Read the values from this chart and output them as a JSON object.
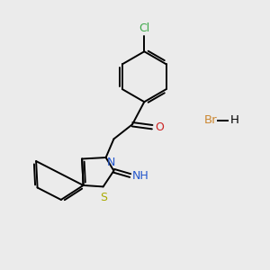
{
  "bg_color": "#ebebeb",
  "bond_color": "#000000",
  "cl_color": "#3da84a",
  "n_color": "#2255cc",
  "o_color": "#cc2222",
  "s_color": "#aaaa00",
  "br_color": "#cc8833",
  "line_width": 1.4,
  "figsize": [
    3.0,
    3.0
  ],
  "dpi": 100,
  "xlim": [
    0,
    10
  ],
  "ylim": [
    0,
    10
  ]
}
